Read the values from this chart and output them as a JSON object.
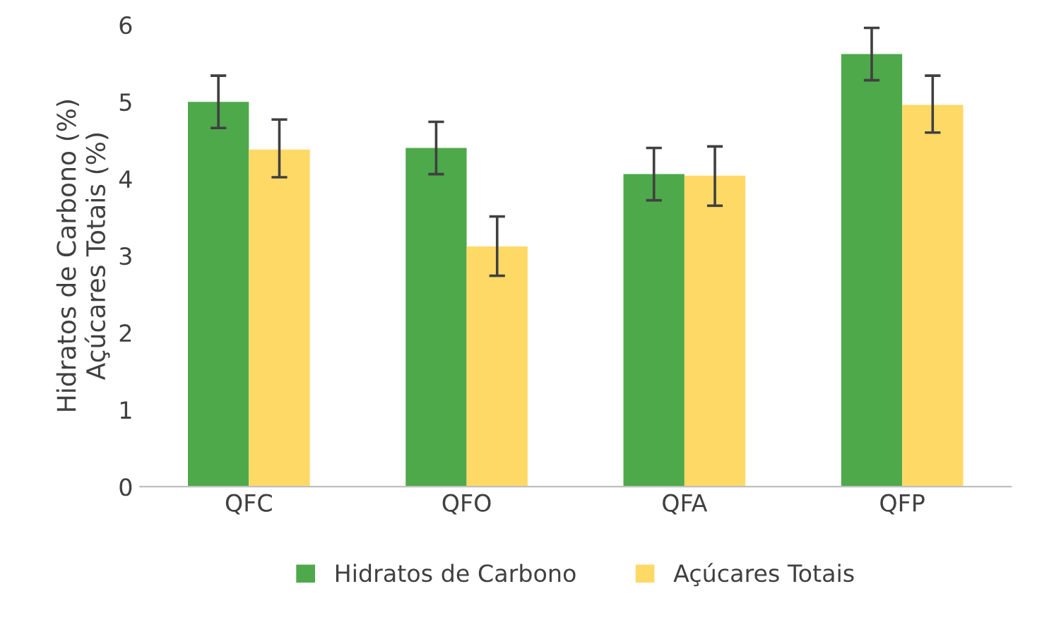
{
  "chart_data": {
    "type": "bar",
    "ylabel": "Hidratos de Carbono (%)\nAçúcares Totais (%)",
    "categories": [
      "QFC",
      "QFO",
      "QFA",
      "QFP"
    ],
    "series": [
      {
        "name": "Hidratos de Carbono",
        "color": "#4ea94b",
        "values": [
          5.0,
          4.4,
          4.06,
          5.62
        ],
        "errors": [
          [
            4.66,
            5.34
          ],
          [
            4.06,
            4.74
          ],
          [
            3.72,
            4.4
          ],
          [
            5.28,
            5.96
          ]
        ]
      },
      {
        "name": "Açúcares Totais",
        "color": "#ffd966",
        "values": [
          4.38,
          3.12,
          4.04,
          4.96
        ],
        "errors": [
          [
            4.02,
            4.77
          ],
          [
            2.74,
            3.51
          ],
          [
            3.65,
            4.42
          ],
          [
            4.6,
            5.34
          ]
        ]
      }
    ],
    "ylim": [
      0,
      6
    ],
    "yticks": [
      0,
      1,
      2,
      3,
      4,
      5,
      6
    ],
    "grid": false,
    "legend": "bottom"
  }
}
